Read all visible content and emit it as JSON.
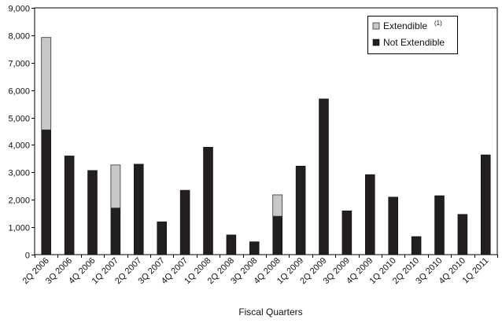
{
  "chart_data": {
    "type": "bar",
    "stacked": true,
    "xlabel": "Fiscal Quarters",
    "ylabel": "",
    "ylim": [
      0,
      9000
    ],
    "yticks": [
      0,
      1000,
      2000,
      3000,
      4000,
      5000,
      6000,
      7000,
      8000,
      9000
    ],
    "ytick_labels": [
      "0",
      "1,000",
      "2,000",
      "3,000",
      "4,000",
      "5,000",
      "6,000",
      "7,000",
      "8,000",
      "9,000"
    ],
    "grid": false,
    "legend_position": "top-right",
    "categories": [
      "2Q 2006",
      "3Q 2006",
      "4Q 2006",
      "1Q 2007",
      "2Q 2007",
      "3Q 2007",
      "4Q 2007",
      "1Q 2008",
      "2Q 2008",
      "3Q 2008",
      "4Q 2008",
      "1Q 2009",
      "2Q 2009",
      "3Q 2009",
      "4Q 2009",
      "1Q 2010",
      "2Q 2010",
      "3Q 2010",
      "4Q 2010",
      "1Q 2011"
    ],
    "series": [
      {
        "name": "Not Extendible",
        "color": "#231f20",
        "values": [
          4550,
          3600,
          3070,
          1700,
          3300,
          1200,
          2350,
          3920,
          720,
          470,
          1400,
          3230,
          5680,
          1600,
          2920,
          2100,
          660,
          2150,
          1470,
          3640
        ]
      },
      {
        "name": "Extendible",
        "name_superscript": "(1)",
        "color": "#c8c8c8",
        "values": [
          3370,
          0,
          0,
          1570,
          0,
          0,
          0,
          0,
          0,
          0,
          780,
          0,
          0,
          0,
          0,
          0,
          0,
          0,
          0,
          0
        ]
      }
    ]
  }
}
